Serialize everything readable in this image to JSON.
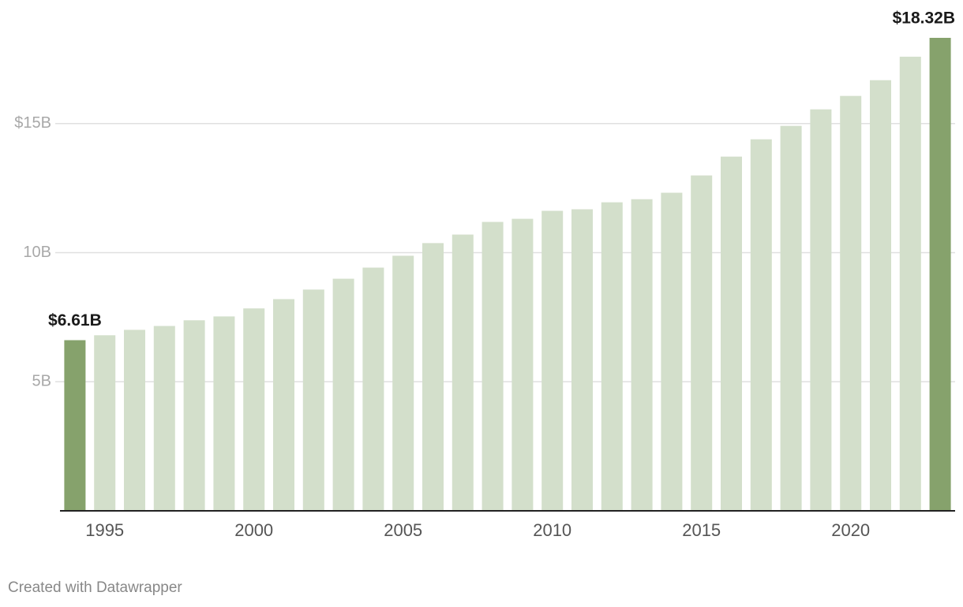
{
  "chart_data": {
    "type": "bar",
    "categories": [
      null,
      "1995",
      null,
      null,
      null,
      null,
      "2000",
      null,
      null,
      null,
      null,
      "2005",
      null,
      null,
      null,
      null,
      "2010",
      null,
      null,
      null,
      null,
      "2015",
      null,
      null,
      null,
      null,
      "2020",
      null,
      null,
      null
    ],
    "values": [
      6.61,
      6.8,
      7.01,
      7.16,
      7.38,
      7.53,
      7.84,
      8.2,
      8.57,
      8.99,
      9.42,
      9.88,
      10.37,
      10.7,
      11.19,
      11.31,
      11.62,
      11.68,
      11.95,
      12.07,
      12.32,
      12.99,
      13.72,
      14.39,
      14.91,
      15.55,
      16.07,
      16.68,
      17.59,
      18.32
    ],
    "value_labels": [
      "$6.61B",
      null,
      null,
      null,
      null,
      null,
      null,
      null,
      null,
      null,
      null,
      null,
      null,
      null,
      null,
      null,
      null,
      null,
      null,
      null,
      null,
      null,
      null,
      null,
      null,
      null,
      null,
      null,
      null,
      "$18.32B"
    ],
    "colors": [
      "#86a26c",
      "#d3dfcb",
      "#d3dfcb",
      "#d3dfcb",
      "#d3dfcb",
      "#d3dfcb",
      "#d3dfcb",
      "#d3dfcb",
      "#d3dfcb",
      "#d3dfcb",
      "#d3dfcb",
      "#d3dfcb",
      "#d3dfcb",
      "#d3dfcb",
      "#d3dfcb",
      "#d3dfcb",
      "#d3dfcb",
      "#d3dfcb",
      "#d3dfcb",
      "#d3dfcb",
      "#d3dfcb",
      "#d3dfcb",
      "#d3dfcb",
      "#d3dfcb",
      "#d3dfcb",
      "#d3dfcb",
      "#d3dfcb",
      "#d3dfcb",
      "#d3dfcb",
      "#86a26c"
    ],
    "ylim": [
      0,
      18.32
    ],
    "yticks": [
      {
        "value": 5,
        "label": "5B"
      },
      {
        "value": 10,
        "label": "10B"
      },
      {
        "value": 15,
        "label": "$15B"
      }
    ],
    "grid": true,
    "credit": "Created with Datawrapper"
  }
}
